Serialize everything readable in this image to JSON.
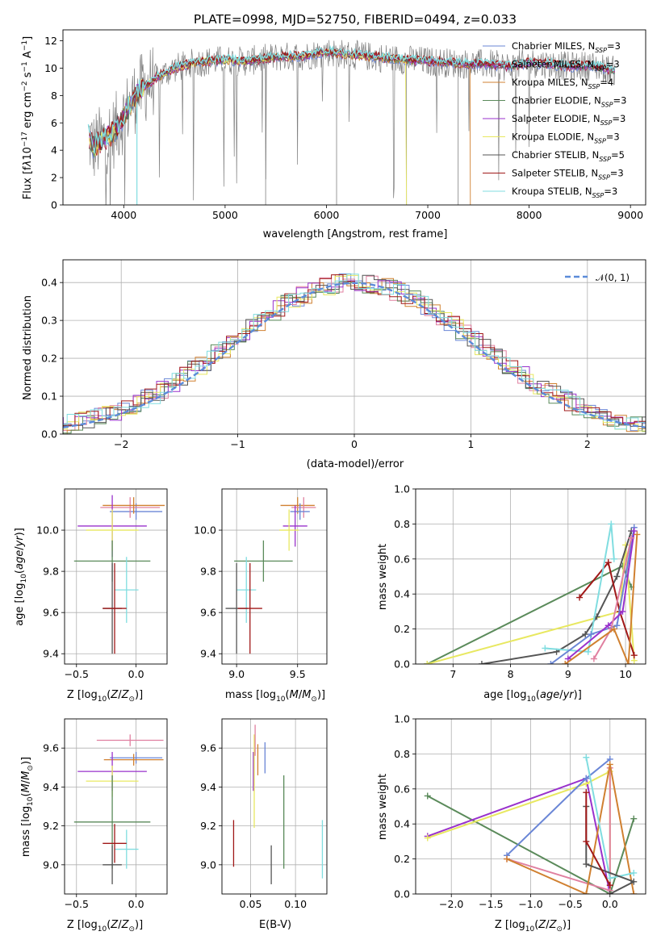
{
  "chart_data": [
    {
      "type": "line",
      "title": "PLATE=0998, MJD=52750, FIBERID=0494, z=0.033",
      "xlabel": "wavelength [Angstrom, rest frame]",
      "ylabel": "Flux [f_λ10^-17 erg cm^-2 s^-1 A^-1]",
      "xlim": [
        3400,
        9150
      ],
      "ylim": [
        0,
        12.8
      ],
      "xticks": [
        4000,
        5000,
        6000,
        7000,
        8000,
        9000
      ],
      "yticks": [
        0,
        2,
        4,
        6,
        8,
        10,
        12
      ],
      "grid": false,
      "legend_position": "top-right",
      "series": [
        {
          "name": "Chabrier MILES, N_SSP=3",
          "color": "#6a86d6"
        },
        {
          "name": "Salpeter MILES, N_SSP=3",
          "color": "#b02a48"
        },
        {
          "name": "Kroupa MILES, N_SSP=4",
          "color": "#d08030"
        },
        {
          "name": "Chabrier ELODIE, N_SSP=3",
          "color": "#5a8a5a"
        },
        {
          "name": "Salpeter ELODIE, N_SSP=3",
          "color": "#9932cc"
        },
        {
          "name": "Kroupa ELODIE, N_SSP=3",
          "color": "#e8e860"
        },
        {
          "name": "Chabrier STELIB, N_SSP=5",
          "color": "#555555"
        },
        {
          "name": "Salpeter STELIB, N_SSP=3",
          "color": "#a01818"
        },
        {
          "name": "Kroupa STELIB, N_SSP=3",
          "color": "#80dde0"
        }
      ],
      "data_color": "#808080",
      "continuum": {
        "x": [
          3650,
          3700,
          3800,
          3900,
          4000,
          4100,
          4200,
          4300,
          4400,
          4500,
          4700,
          5000,
          5200,
          5500,
          5800,
          6000,
          6200,
          6500,
          6800,
          7000,
          7200,
          7400,
          7600,
          7800,
          8000,
          8200,
          8400,
          8600,
          8850
        ],
        "y": [
          5.0,
          4.2,
          4.8,
          5.3,
          6.5,
          7.8,
          8.6,
          9.2,
          9.6,
          10.0,
          10.4,
          10.6,
          10.5,
          10.8,
          10.9,
          11.2,
          11.0,
          10.8,
          10.6,
          10.5,
          10.4,
          10.3,
          10.3,
          10.1,
          10.4,
          10.3,
          10.1,
          10.2,
          9.8
        ]
      }
    },
    {
      "type": "histogram",
      "xlabel": "(data-model)/error",
      "ylabel": "Normed distribution",
      "xlim": [
        -2.5,
        2.5
      ],
      "ylim": [
        0,
        0.46
      ],
      "xticks": [
        -2,
        -1,
        0,
        1,
        2
      ],
      "yticks": [
        0.0,
        0.1,
        0.2,
        0.3,
        0.4
      ],
      "grid": true,
      "legend": "𝒩(0, 1)",
      "legend_position": "top-right",
      "reference_color": "#5b8bd9"
    },
    {
      "type": "errorbar",
      "xlabel": "Z [log10(Z/Z⊙)]",
      "ylabel": "age  [log10(age/yr)]",
      "xlim": [
        -0.6,
        0.26
      ],
      "ylim": [
        9.35,
        10.2
      ],
      "xticks": [
        -0.5,
        0.0
      ],
      "yticks": [
        9.4,
        9.6,
        9.8,
        10.0
      ],
      "grid": true,
      "points": [
        {
          "x": 0.0,
          "y": 10.09,
          "xerr": 0.22,
          "yerr": 0.04,
          "color": "#6a86d6"
        },
        {
          "x": -0.05,
          "y": 10.11,
          "xerr": 0.25,
          "yerr": 0.05,
          "color": "#e080a0"
        },
        {
          "x": -0.02,
          "y": 10.12,
          "xerr": 0.26,
          "yerr": 0.04,
          "color": "#d08030"
        },
        {
          "x": -0.2,
          "y": 10.02,
          "xerr": 0.29,
          "yerr": 0.15,
          "color": "#9932cc"
        },
        {
          "x": -0.2,
          "y": 10.0,
          "xerr": 0.22,
          "yerr": 0.1,
          "color": "#e8e860"
        },
        {
          "x": -0.2,
          "y": 9.85,
          "xerr": 0.32,
          "yerr": 0.1,
          "color": "#5a8a5a"
        },
        {
          "x": -0.08,
          "y": 9.71,
          "xerr": 0.1,
          "yerr": 0.16,
          "color": "#80dde0"
        },
        {
          "x": -0.2,
          "y": 9.62,
          "xerr": 0.08,
          "yerr": 0.22,
          "color": "#555555"
        },
        {
          "x": -0.18,
          "y": 9.62,
          "xerr": 0.1,
          "yerr": 0.22,
          "color": "#a01818"
        }
      ]
    },
    {
      "type": "errorbar",
      "xlabel": "mass [log10(M/M⊙)]",
      "xlim": [
        8.88,
        9.74
      ],
      "ylim": [
        9.35,
        10.2
      ],
      "xticks": [
        9.0,
        9.5
      ],
      "yticks": [
        9.4,
        9.6,
        9.8,
        10.0
      ],
      "grid": true,
      "points": [
        {
          "x": 9.5,
          "y": 10.12,
          "xerr": 0.14,
          "yerr": 0.04,
          "color": "#d08030"
        },
        {
          "x": 9.55,
          "y": 10.11,
          "xerr": 0.1,
          "yerr": 0.05,
          "color": "#e080a0"
        },
        {
          "x": 9.52,
          "y": 10.09,
          "xerr": 0.08,
          "yerr": 0.04,
          "color": "#6a86d6"
        },
        {
          "x": 9.48,
          "y": 10.02,
          "xerr": 0.1,
          "yerr": 0.1,
          "color": "#9932cc"
        },
        {
          "x": 9.43,
          "y": 10.0,
          "xerr": 0.08,
          "yerr": 0.1,
          "color": "#e8e860"
        },
        {
          "x": 9.22,
          "y": 9.85,
          "xerr": 0.24,
          "yerr": 0.1,
          "color": "#5a8a5a"
        },
        {
          "x": 9.08,
          "y": 9.71,
          "xerr": 0.08,
          "yerr": 0.16,
          "color": "#80dde0"
        },
        {
          "x": 9.0,
          "y": 9.62,
          "xerr": 0.09,
          "yerr": 0.22,
          "color": "#555555"
        },
        {
          "x": 9.11,
          "y": 9.62,
          "xerr": 0.1,
          "yerr": 0.22,
          "color": "#a01818"
        }
      ]
    },
    {
      "type": "line",
      "xlabel": "age  [log10(age/yr)]",
      "ylabel": "mass weight",
      "xlim": [
        6.35,
        10.35
      ],
      "ylim": [
        0.0,
        1.0
      ],
      "xticks": [
        7,
        8,
        9,
        10
      ],
      "yticks": [
        0.0,
        0.2,
        0.4,
        0.6,
        0.8,
        1.0
      ],
      "grid": true,
      "series": [
        {
          "color": "#5a8a5a",
          "x": [
            6.55,
            9.95,
            10.1
          ],
          "y": [
            0.0,
            0.56,
            0.44
          ]
        },
        {
          "color": "#e8e860",
          "x": [
            6.55,
            9.9,
            10.0,
            10.15
          ],
          "y": [
            0.0,
            0.3,
            0.68,
            0.02
          ]
        },
        {
          "color": "#555555",
          "x": [
            7.5,
            8.8,
            9.3,
            9.5,
            9.85,
            10.1
          ],
          "y": [
            0.0,
            0.07,
            0.17,
            0.27,
            0.5,
            0.76
          ]
        },
        {
          "color": "#a01818",
          "x": [
            9.2,
            9.7,
            9.9,
            10.15
          ],
          "y": [
            0.38,
            0.58,
            0.3,
            0.05
          ]
        },
        {
          "color": "#80dde0",
          "x": [
            8.6,
            9.35,
            9.75,
            9.8
          ],
          "y": [
            0.09,
            0.07,
            0.8,
            0.6
          ]
        },
        {
          "color": "#6a86d6",
          "x": [
            8.7,
            9.4,
            9.85,
            10.15
          ],
          "y": [
            0.0,
            0.17,
            0.22,
            0.78
          ]
        },
        {
          "color": "#9932cc",
          "x": [
            9.0,
            9.7,
            9.95,
            10.15
          ],
          "y": [
            0.03,
            0.22,
            0.3,
            0.76
          ]
        },
        {
          "color": "#e080a0",
          "x": [
            9.45,
            9.75,
            10.1
          ],
          "y": [
            0.03,
            0.2,
            0.72
          ]
        },
        {
          "color": "#d08030",
          "x": [
            8.95,
            9.8,
            10.05,
            10.2
          ],
          "y": [
            0.0,
            0.2,
            0.0,
            0.74
          ]
        }
      ]
    },
    {
      "type": "errorbar",
      "xlabel": "Z [log10(Z/Z⊙)]",
      "ylabel": "mass [log10(M/M⊙)]",
      "xlim": [
        -0.6,
        0.26
      ],
      "ylim": [
        8.85,
        9.75
      ],
      "xticks": [
        -0.5,
        0.0
      ],
      "yticks": [
        9.0,
        9.2,
        9.4,
        9.6
      ],
      "grid": true,
      "points": [
        {
          "x": -0.05,
          "y": 9.64,
          "xerr": 0.28,
          "yerr": 0.03,
          "color": "#e080a0"
        },
        {
          "x": 0.0,
          "y": 9.55,
          "xerr": 0.22,
          "yerr": 0.03,
          "color": "#6a86d6"
        },
        {
          "x": -0.02,
          "y": 9.54,
          "xerr": 0.25,
          "yerr": 0.03,
          "color": "#d08030"
        },
        {
          "x": -0.2,
          "y": 9.48,
          "xerr": 0.29,
          "yerr": 0.1,
          "color": "#9932cc"
        },
        {
          "x": -0.2,
          "y": 9.43,
          "xerr": 0.22,
          "yerr": 0.08,
          "color": "#e8e860"
        },
        {
          "x": -0.2,
          "y": 9.22,
          "xerr": 0.32,
          "yerr": 0.24,
          "color": "#5a8a5a"
        },
        {
          "x": -0.08,
          "y": 9.08,
          "xerr": 0.1,
          "yerr": 0.1,
          "color": "#80dde0"
        },
        {
          "x": -0.2,
          "y": 9.0,
          "xerr": 0.08,
          "yerr": 0.1,
          "color": "#555555"
        },
        {
          "x": -0.18,
          "y": 9.11,
          "xerr": 0.1,
          "yerr": 0.1,
          "color": "#a01818"
        }
      ]
    },
    {
      "type": "errorbar",
      "xlabel": "E(B-V)",
      "xlim": [
        0.018,
        0.135
      ],
      "ylim": [
        8.85,
        9.75
      ],
      "xticks": [
        0.05,
        0.1
      ],
      "yticks": [
        9.0,
        9.2,
        9.4,
        9.6
      ],
      "grid": true,
      "points": [
        {
          "x": 0.031,
          "y": 9.11,
          "yerr": 0.12,
          "color": "#a01818"
        },
        {
          "x": 0.053,
          "y": 9.48,
          "yerr": 0.1,
          "color": "#9932cc"
        },
        {
          "x": 0.054,
          "y": 9.43,
          "yerr": 0.24,
          "color": "#e8e860"
        },
        {
          "x": 0.055,
          "y": 9.64,
          "yerr": 0.08,
          "color": "#e080a0"
        },
        {
          "x": 0.058,
          "y": 9.54,
          "yerr": 0.08,
          "color": "#d08030"
        },
        {
          "x": 0.066,
          "y": 9.55,
          "yerr": 0.08,
          "color": "#6a86d6"
        },
        {
          "x": 0.073,
          "y": 9.0,
          "yerr": 0.1,
          "color": "#555555"
        },
        {
          "x": 0.087,
          "y": 9.22,
          "yerr": 0.24,
          "color": "#5a8a5a"
        },
        {
          "x": 0.13,
          "y": 9.08,
          "yerr": 0.15,
          "color": "#80dde0"
        }
      ]
    },
    {
      "type": "line",
      "xlabel": "Z [log10(Z/Z⊙)]",
      "ylabel": "mass weight",
      "xlim": [
        -2.45,
        0.45
      ],
      "ylim": [
        0.0,
        1.0
      ],
      "xticks": [
        -2.0,
        -1.5,
        -1.0,
        -0.5,
        0.0
      ],
      "yticks": [
        0.0,
        0.2,
        0.4,
        0.6,
        0.8,
        1.0
      ],
      "grid": true,
      "series": [
        {
          "color": "#5a8a5a",
          "x": [
            -2.3,
            0.0,
            0.3
          ],
          "y": [
            0.56,
            0.0,
            0.43
          ]
        },
        {
          "color": "#9932cc",
          "x": [
            -2.3,
            -0.3,
            0.0
          ],
          "y": [
            0.33,
            0.66,
            0.0
          ]
        },
        {
          "color": "#e8e860",
          "x": [
            -2.3,
            -0.3,
            0.0,
            0.0
          ],
          "y": [
            0.32,
            0.63,
            0.7,
            0.0
          ]
        },
        {
          "color": "#6a86d6",
          "x": [
            -1.3,
            -0.3,
            0.0
          ],
          "y": [
            0.22,
            0.66,
            0.77
          ]
        },
        {
          "color": "#e080a0",
          "x": [
            -1.3,
            0.0,
            0.0
          ],
          "y": [
            0.2,
            0.02,
            0.72
          ]
        },
        {
          "color": "#d08030",
          "x": [
            -1.3,
            -0.3,
            0.0,
            0.3
          ],
          "y": [
            0.2,
            0.0,
            0.74,
            0.0
          ]
        },
        {
          "color": "#80dde0",
          "x": [
            -0.3,
            0.0,
            0.3
          ],
          "y": [
            0.78,
            0.09,
            0.12
          ]
        },
        {
          "color": "#555555",
          "x": [
            -0.3,
            -0.3,
            0.3,
            0.0
          ],
          "y": [
            0.5,
            0.17,
            0.07,
            0.0
          ]
        },
        {
          "color": "#a01818",
          "x": [
            -0.3,
            -0.3,
            0.0
          ],
          "y": [
            0.58,
            0.3,
            0.05
          ]
        }
      ]
    }
  ]
}
